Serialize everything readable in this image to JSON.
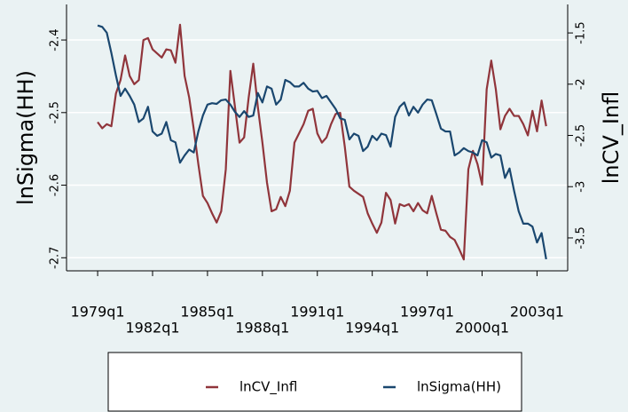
{
  "chart_data": {
    "type": "line",
    "x": [
      76,
      77,
      78,
      79,
      80,
      81,
      82,
      83,
      84,
      85,
      86,
      87,
      88,
      89,
      90,
      91,
      92,
      93,
      94,
      95,
      96,
      97,
      98,
      99,
      100,
      101,
      102,
      103,
      104,
      105,
      106,
      107,
      108,
      109,
      110,
      111,
      112,
      113,
      114,
      115,
      116,
      117,
      118,
      119,
      120,
      121,
      122,
      123,
      124,
      125,
      126,
      127,
      128,
      129,
      130,
      131,
      132,
      133,
      134,
      135,
      136,
      137,
      138,
      139,
      140,
      141,
      142,
      143,
      144,
      145,
      146,
      147,
      148,
      149,
      150,
      151,
      152,
      153,
      154,
      155,
      156,
      157,
      158,
      159,
      160,
      161,
      162,
      163,
      164,
      165,
      166,
      167,
      168,
      169,
      170,
      171,
      172,
      173,
      174
    ],
    "xlim": [
      69.2,
      178.7
    ],
    "xticks": [
      {
        "value": 76,
        "label": "1979q1"
      },
      {
        "value": 88,
        "label": "1982q1"
      },
      {
        "value": 100,
        "label": "1985q1"
      },
      {
        "value": 112,
        "label": "1988q1"
      },
      {
        "value": 124,
        "label": "1991q1"
      },
      {
        "value": 136,
        "label": "1994q1"
      },
      {
        "value": 148,
        "label": "1997q1"
      },
      {
        "value": 160,
        "label": "2000q1"
      },
      {
        "value": 172,
        "label": "2003q1"
      }
    ],
    "ylabel": "lnSigma(HH)",
    "ylim": [
      -2.718,
      -2.351
    ],
    "yticks": [
      -2.7,
      -2.6,
      -2.5,
      -2.4
    ],
    "y2label": "lnCV_Infl",
    "y2lim": [
      -3.821,
      -1.222
    ],
    "y2ticks": [
      -3.5,
      -3,
      -2.5,
      -2,
      -1.5
    ],
    "grid": true,
    "series": [
      {
        "name": "lnCV_Infl",
        "color": "#90353b",
        "axis": "y2",
        "values": [
          -2.37,
          -2.43,
          -2.39,
          -2.41,
          -2.09,
          -1.96,
          -1.72,
          -1.92,
          -2.0,
          -1.96,
          -1.57,
          -1.55,
          -1.66,
          -1.7,
          -1.74,
          -1.66,
          -1.67,
          -1.79,
          -1.42,
          -1.92,
          -2.13,
          -2.44,
          -2.78,
          -3.09,
          -3.16,
          -3.26,
          -3.35,
          -3.24,
          -2.83,
          -1.87,
          -2.22,
          -2.57,
          -2.52,
          -2.13,
          -1.8,
          -2.22,
          -2.57,
          -2.96,
          -3.24,
          -3.22,
          -3.1,
          -3.19,
          -3.04,
          -2.57,
          -2.48,
          -2.39,
          -2.26,
          -2.24,
          -2.48,
          -2.57,
          -2.52,
          -2.39,
          -2.29,
          -2.28,
          -2.61,
          -3.0,
          -3.04,
          -3.07,
          -3.1,
          -3.26,
          -3.36,
          -3.45,
          -3.35,
          -3.06,
          -3.13,
          -3.36,
          -3.17,
          -3.19,
          -3.17,
          -3.24,
          -3.16,
          -3.23,
          -3.26,
          -3.09,
          -3.26,
          -3.42,
          -3.43,
          -3.49,
          -3.52,
          -3.61,
          -3.71,
          -2.83,
          -2.65,
          -2.78,
          -2.98,
          -2.05,
          -1.77,
          -2.05,
          -2.44,
          -2.31,
          -2.24,
          -2.31,
          -2.31,
          -2.39,
          -2.5,
          -2.26,
          -2.46,
          -2.16,
          -2.41
        ]
      },
      {
        "name": "lnSigma(HH)",
        "color": "#1a476f",
        "values": [
          -2.38,
          -2.382,
          -2.39,
          -2.418,
          -2.449,
          -2.477,
          -2.467,
          -2.477,
          -2.489,
          -2.513,
          -2.508,
          -2.492,
          -2.526,
          -2.532,
          -2.529,
          -2.513,
          -2.538,
          -2.541,
          -2.569,
          -2.559,
          -2.551,
          -2.555,
          -2.526,
          -2.504,
          -2.489,
          -2.487,
          -2.488,
          -2.483,
          -2.482,
          -2.489,
          -2.499,
          -2.506,
          -2.498,
          -2.506,
          -2.504,
          -2.473,
          -2.486,
          -2.464,
          -2.467,
          -2.489,
          -2.482,
          -2.455,
          -2.458,
          -2.464,
          -2.464,
          -2.459,
          -2.467,
          -2.471,
          -2.47,
          -2.48,
          -2.477,
          -2.486,
          -2.495,
          -2.508,
          -2.51,
          -2.537,
          -2.529,
          -2.532,
          -2.553,
          -2.547,
          -2.532,
          -2.538,
          -2.529,
          -2.531,
          -2.547,
          -2.506,
          -2.492,
          -2.486,
          -2.504,
          -2.492,
          -2.5,
          -2.489,
          -2.482,
          -2.483,
          -2.502,
          -2.522,
          -2.526,
          -2.526,
          -2.559,
          -2.555,
          -2.549,
          -2.553,
          -2.555,
          -2.559,
          -2.538,
          -2.541,
          -2.562,
          -2.557,
          -2.559,
          -2.59,
          -2.577,
          -2.608,
          -2.636,
          -2.653,
          -2.653,
          -2.657,
          -2.679,
          -2.666,
          -2.702
        ]
      }
    ]
  }
}
